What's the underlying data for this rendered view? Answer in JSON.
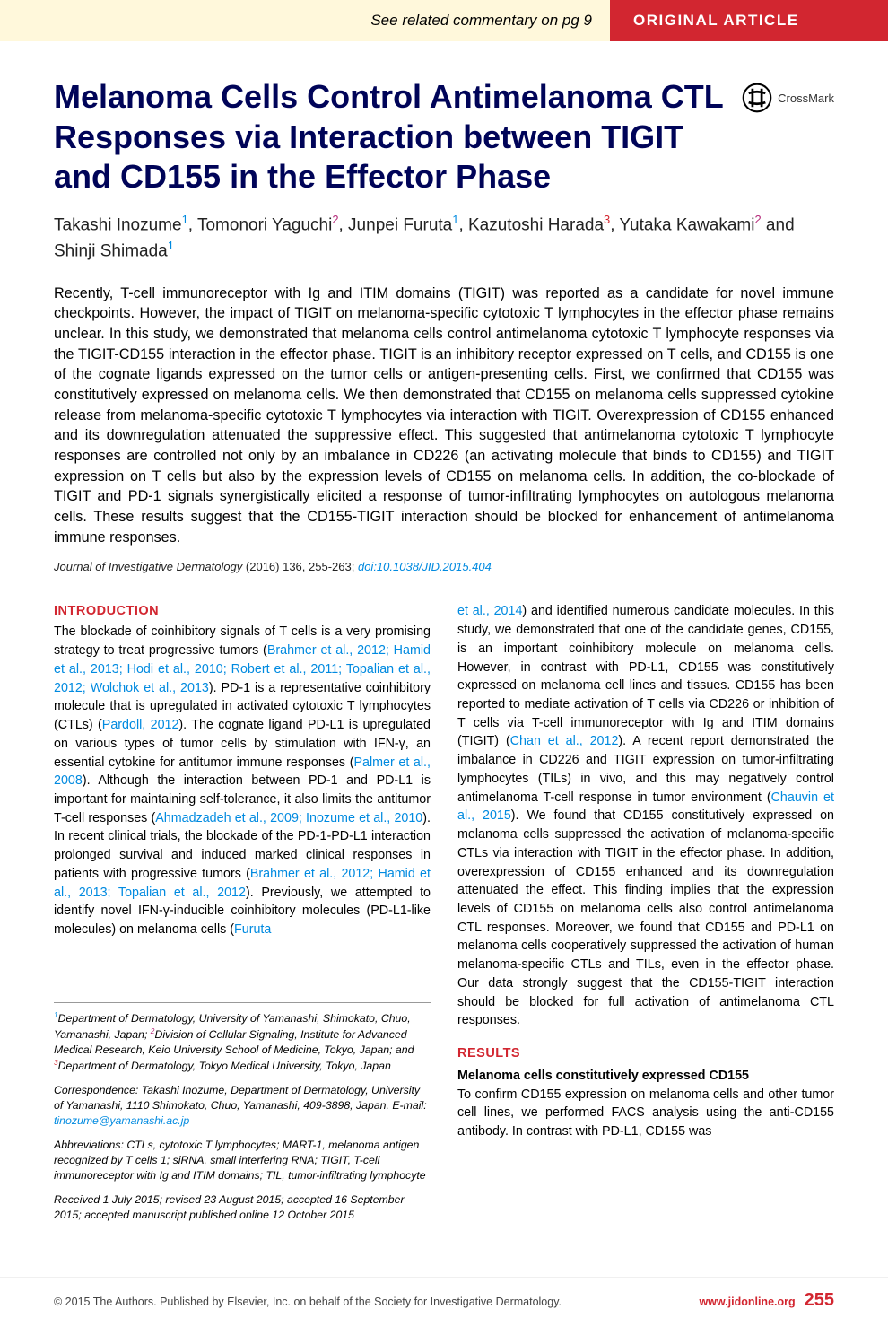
{
  "top_bar": {
    "commentary_text": "See related commentary on pg 9",
    "label": "ORIGINAL ARTICLE",
    "left_bg": "#fff8db",
    "right_bg": "#d22630",
    "right_color": "#ffffff",
    "commentary_color": "#5b5b5b"
  },
  "title": "Melanoma Cells Control Antimelanoma CTL Responses via Interaction between TIGIT and CD155 in the Effector Phase",
  "title_color": "#000458",
  "crossmark_label": "CrossMark",
  "authors": {
    "line1_parts": [
      {
        "name": "Takashi Inozume",
        "sup": "1",
        "sup_color": "#008ae0"
      },
      {
        "name": "Tomonori Yaguchi",
        "sup": "2",
        "sup_color": "#b52b7a"
      },
      {
        "name": "Junpei Furuta",
        "sup": "1",
        "sup_color": "#008ae0"
      },
      {
        "name": "Kazutoshi Harada",
        "sup": "3",
        "sup_color": "#d22630"
      },
      {
        "name": "Yutaka Kawakami",
        "sup": "2",
        "sup_color": "#b52b7a"
      }
    ],
    "line2_parts": [
      {
        "name": "Shinji Shimada",
        "sup": "1",
        "sup_color": "#008ae0"
      }
    ]
  },
  "abstract": "Recently, T-cell immunoreceptor with Ig and ITIM domains (TIGIT) was reported as a candidate for novel immune checkpoints. However, the impact of TIGIT on melanoma-specific cytotoxic T lymphocytes in the effector phase remains unclear. In this study, we demonstrated that melanoma cells control antimelanoma cytotoxic T lymphocyte responses via the TIGIT-CD155 interaction in the effector phase. TIGIT is an inhibitory receptor expressed on T cells, and CD155 is one of the cognate ligands expressed on the tumor cells or antigen-presenting cells. First, we confirmed that CD155 was constitutively expressed on melanoma cells. We then demonstrated that CD155 on melanoma cells suppressed cytokine release from melanoma-specific cytotoxic T lymphocytes via interaction with TIGIT. Overexpression of CD155 enhanced and its downregulation attenuated the suppressive effect. This suggested that antimelanoma cytotoxic T lymphocyte responses are controlled not only by an imbalance in CD226 (an activating molecule that binds to CD155) and TIGIT expression on T cells but also by the expression levels of CD155 on melanoma cells. In addition, the co-blockade of TIGIT and PD-1 signals synergistically elicited a response of tumor-infiltrating lymphocytes on autologous melanoma cells. These results suggest that the CD155-TIGIT interaction should be blocked for enhancement of antimelanoma immune responses.",
  "citation": {
    "journal": "Journal of Investigative Dermatology",
    "year_vol_pages": "(2016) 136, 255-263;",
    "doi_text": "doi:10.1038/JID.2015.404",
    "doi_color": "#008ae0"
  },
  "intro": {
    "heading": "INTRODUCTION",
    "heading_color": "#d22630",
    "body_segments": [
      {
        "t": "The blockade of coinhibitory signals of T cells is a very promising strategy to treat progressive tumors ("
      },
      {
        "t": "Brahmer et al., 2012; Hamid et al., 2013; Hodi et al., 2010; Robert et al., 2011; Topalian et al., 2012; Wolchok et al., 2013",
        "link": true
      },
      {
        "t": "). PD-1 is a representative coinhibitory molecule that is upregulated in activated cytotoxic T lymphocytes (CTLs) ("
      },
      {
        "t": "Pardoll, 2012",
        "link": true
      },
      {
        "t": "). The cognate ligand PD-L1 is upregulated on various types of tumor cells by stimulation with IFN-γ, an essential cytokine for antitumor immune responses ("
      },
      {
        "t": "Palmer et al., 2008",
        "link": true
      },
      {
        "t": "). Although the interaction between PD-1 and PD-L1 is important for maintaining self-tolerance, it also limits the antitumor T-cell responses ("
      },
      {
        "t": "Ahmadzadeh et al., 2009; Inozume et al., 2010",
        "link": true
      },
      {
        "t": "). In recent clinical trials, the blockade of the PD-1-PD-L1 interaction prolonged survival and induced marked clinical responses in patients with progressive tumors ("
      },
      {
        "t": "Brahmer et al., 2012; Hamid et al., 2013; Topalian et al., 2012",
        "link": true
      },
      {
        "t": "). Previously, we attempted to identify novel IFN-γ-inducible coinhibitory molecules (PD-L1-like molecules) on melanoma cells ("
      },
      {
        "t": "Furuta",
        "link": true
      }
    ]
  },
  "col2_segments": [
    {
      "t": "et al., 2014",
      "link": true
    },
    {
      "t": ") and identified numerous candidate molecules. In this study, we demonstrated that one of the candidate genes, CD155, is an important coinhibitory molecule on melanoma cells. However, in contrast with PD-L1, CD155 was constitutively expressed on melanoma cell lines and tissues. CD155 has been reported to mediate activation of T cells via CD226 or inhibition of T cells via T-cell immunoreceptor with Ig and ITIM domains (TIGIT) ("
    },
    {
      "t": "Chan et al., 2012",
      "link": true
    },
    {
      "t": "). A recent report demonstrated the imbalance in CD226 and TIGIT expression on tumor-infiltrating lymphocytes (TILs) in vivo, and this may negatively control antimelanoma T-cell response in tumor environment ("
    },
    {
      "t": "Chauvin et al., 2015",
      "link": true
    },
    {
      "t": "). We found that CD155 constitutively expressed on melanoma cells suppressed the activation of melanoma-specific CTLs via interaction with TIGIT in the effector phase. In addition, overexpression of CD155 enhanced and its downregulation attenuated the effect. This finding implies that the expression levels of CD155 on melanoma cells also control antimelanoma CTL responses. Moreover, we found that CD155 and PD-L1 on melanoma cells cooperatively suppressed the activation of human melanoma-specific CTLs and TILs, even in the effector phase. Our data strongly suggest that the CD155-TIGIT interaction should be blocked for full activation of antimelanoma CTL responses."
    }
  ],
  "results": {
    "heading": "RESULTS",
    "heading_color": "#d22630",
    "sub_heading": "Melanoma cells constitutively expressed CD155",
    "body": "To confirm CD155 expression on melanoma cells and other tumor cell lines, we performed FACS analysis using the anti-CD155 antibody. In contrast with PD-L1, CD155 was"
  },
  "footnotes": {
    "affiliations_html": "<span class='sup sup1'>1</span>Department of Dermatology, University of Yamanashi, Shimokato, Chuo, Yamanashi, Japan; <span class='sup sup2'>2</span>Division of Cellular Signaling, Institute for Advanced Medical Research, Keio University School of Medicine, Tokyo, Japan; and <span class='sup sup3'>3</span>Department of Dermatology, Tokyo Medical University, Tokyo, Japan",
    "correspondence_pre": "Correspondence: Takashi Inozume, Department of Dermatology, University of Yamanashi, 1110 Shimokato, Chuo, Yamanashi, 409-3898, Japan. E-mail: ",
    "correspondence_email": "tinozume@yamanashi.ac.jp",
    "abbreviations": "Abbreviations: CTLs, cytotoxic T lymphocytes; MART-1, melanoma antigen recognized by T cells 1; siRNA, small interfering RNA; TIGIT, T-cell immunoreceptor with Ig and ITIM domains; TIL, tumor-infiltrating lymphocyte",
    "received": "Received 1 July 2015; revised 23 August 2015; accepted 16 September 2015; accepted manuscript published online 12 October 2015"
  },
  "page_footer": {
    "copyright": "© 2015 The Authors. Published by Elsevier, Inc. on behalf of the Society for Investigative Dermatology.",
    "url": "www.jidonline.org",
    "page": "255",
    "accent": "#d22630"
  }
}
